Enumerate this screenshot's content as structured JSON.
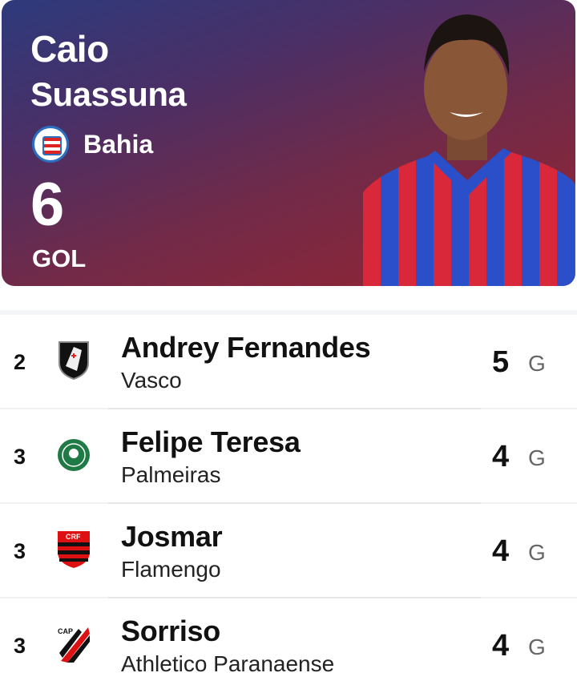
{
  "leader": {
    "first_name": "Caio",
    "last_name": "Suassuna",
    "club": "Bahia",
    "club_crest_icon": "bahia-crest-icon",
    "value": "6",
    "unit": "GOL"
  },
  "rankings": [
    {
      "rank": "2",
      "name": "Andrey Fernandes",
      "team": "Vasco",
      "value": "5",
      "unit": "G",
      "crest_icon": "vasco-crest-icon"
    },
    {
      "rank": "3",
      "name": "Felipe Teresa",
      "team": "Palmeiras",
      "value": "4",
      "unit": "G",
      "crest_icon": "palmeiras-crest-icon"
    },
    {
      "rank": "3",
      "name": "Josmar",
      "team": "Flamengo",
      "value": "4",
      "unit": "G",
      "crest_icon": "flamengo-crest-icon"
    },
    {
      "rank": "3",
      "name": "Sorriso",
      "team": "Athletico Paranaense",
      "value": "4",
      "unit": "G",
      "crest_icon": "athletico-crest-icon"
    }
  ]
}
